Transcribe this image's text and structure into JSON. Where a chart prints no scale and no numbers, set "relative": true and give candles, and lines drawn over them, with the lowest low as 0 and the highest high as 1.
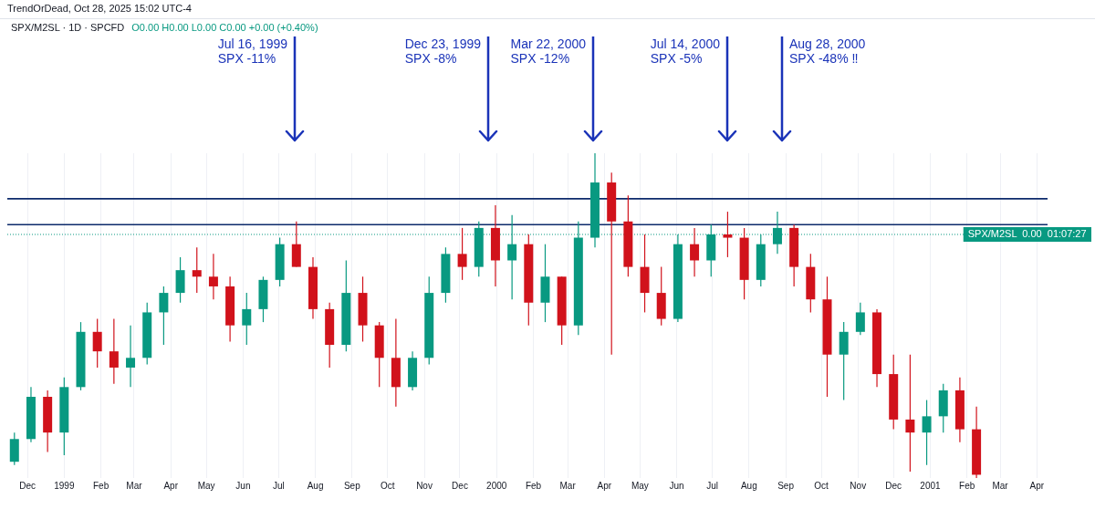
{
  "chart_data": {
    "type": "candlestick",
    "title": "SPX/M2SL · 1D · SPCFD",
    "subtitle": "O0.00 H0.00 L0.00 C0.00 +0.00 (+0.40%)",
    "relative": true,
    "grid": "x",
    "legend": false,
    "annotations": [
      "TrendOrDead, Oct 28, 2025 15:02 UTC-4",
      "Jul 16, 1999\nSPX -11%",
      "Dec 23, 1999\nSPX -8%",
      "Mar 22, 2000\nSPX -12%",
      "Jul 14, 2000\nSPX -5%",
      "Aug 28, 2000\nSPX -48% ‼"
    ],
    "ref_lines": [
      {
        "axis": "y",
        "value": 0.86,
        "label": null,
        "color": "#0d2a6b",
        "line_style": "solid"
      },
      {
        "axis": "y",
        "value": 0.78,
        "label": null,
        "color": "#0d2a6b",
        "line_style": "solid"
      },
      {
        "axis": "y",
        "value": 0.75,
        "label": "SPX/M2SL  0.00  01:07:27",
        "color": "#089981",
        "line_style": "dotted"
      }
    ],
    "xlim": [
      "1998-11-14",
      "2001-04-10"
    ],
    "xticks": [
      {
        "value": "1998-12-01",
        "label": "Dec"
      },
      {
        "value": "1999-01-01",
        "label": "1999"
      },
      {
        "value": "1999-02-01",
        "label": "Feb"
      },
      {
        "value": "1999-03-01",
        "label": "Mar"
      },
      {
        "value": "1999-04-01",
        "label": "Apr"
      },
      {
        "value": "1999-05-01",
        "label": "May"
      },
      {
        "value": "1999-06-01",
        "label": "Jun"
      },
      {
        "value": "1999-07-01",
        "label": "Jul"
      },
      {
        "value": "1999-08-01",
        "label": "Aug"
      },
      {
        "value": "1999-09-01",
        "label": "Sep"
      },
      {
        "value": "1999-10-01",
        "label": "Oct"
      },
      {
        "value": "1999-11-01",
        "label": "Nov"
      },
      {
        "value": "1999-12-01",
        "label": "Dec"
      },
      {
        "value": "2000-01-01",
        "label": "2000"
      },
      {
        "value": "2000-02-01",
        "label": "Feb"
      },
      {
        "value": "2000-03-01",
        "label": "Mar"
      },
      {
        "value": "2000-04-01",
        "label": "Apr"
      },
      {
        "value": "2000-05-01",
        "label": "May"
      },
      {
        "value": "2000-06-01",
        "label": "Jun"
      },
      {
        "value": "2000-07-01",
        "label": "Jul"
      },
      {
        "value": "2000-08-01",
        "label": "Aug"
      },
      {
        "value": "2000-09-01",
        "label": "Sep"
      },
      {
        "value": "2000-10-01",
        "label": "Oct"
      },
      {
        "value": "2000-11-01",
        "label": "Nov"
      },
      {
        "value": "2000-12-01",
        "label": "Dec"
      },
      {
        "value": "2001-01-01",
        "label": "2001"
      },
      {
        "value": "2001-02-01",
        "label": "Feb"
      },
      {
        "value": "2001-03-01",
        "label": "Mar"
      },
      {
        "value": "2001-04-01",
        "label": "Apr"
      }
    ],
    "x": [
      "1998-11-20",
      "1998-12-04",
      "1998-12-18",
      "1999-01-01",
      "1999-01-15",
      "1999-01-29",
      "1999-02-12",
      "1999-02-26",
      "1999-03-12",
      "1999-03-26",
      "1999-04-09",
      "1999-04-23",
      "1999-05-07",
      "1999-05-21",
      "1999-06-04",
      "1999-06-18",
      "1999-07-02",
      "1999-07-16",
      "1999-07-30",
      "1999-08-13",
      "1999-08-27",
      "1999-09-10",
      "1999-09-24",
      "1999-10-08",
      "1999-10-22",
      "1999-11-05",
      "1999-11-19",
      "1999-12-03",
      "1999-12-17",
      "1999-12-31",
      "2000-01-14",
      "2000-01-28",
      "2000-02-11",
      "2000-02-25",
      "2000-03-10",
      "2000-03-24",
      "2000-04-07",
      "2000-04-21",
      "2000-05-05",
      "2000-05-19",
      "2000-06-02",
      "2000-06-16",
      "2000-06-30",
      "2000-07-14",
      "2000-07-28",
      "2000-08-11",
      "2000-08-25",
      "2000-09-08",
      "2000-09-22",
      "2000-10-06",
      "2000-10-20",
      "2000-11-03",
      "2000-11-17",
      "2000-12-01",
      "2000-12-15",
      "2000-12-29",
      "2001-01-12",
      "2001-01-26",
      "2001-02-09"
    ],
    "ohlc": [
      [
        0.05,
        0.14,
        0.04,
        0.12
      ],
      [
        0.12,
        0.28,
        0.11,
        0.25
      ],
      [
        0.25,
        0.27,
        0.08,
        0.14
      ],
      [
        0.14,
        0.31,
        0.07,
        0.28
      ],
      [
        0.28,
        0.48,
        0.27,
        0.45
      ],
      [
        0.45,
        0.49,
        0.34,
        0.39
      ],
      [
        0.39,
        0.49,
        0.29,
        0.34
      ],
      [
        0.34,
        0.47,
        0.28,
        0.37
      ],
      [
        0.37,
        0.54,
        0.35,
        0.51
      ],
      [
        0.51,
        0.59,
        0.41,
        0.57
      ],
      [
        0.57,
        0.68,
        0.54,
        0.64
      ],
      [
        0.64,
        0.71,
        0.57,
        0.62
      ],
      [
        0.62,
        0.69,
        0.55,
        0.59
      ],
      [
        0.59,
        0.62,
        0.42,
        0.47
      ],
      [
        0.47,
        0.57,
        0.41,
        0.52
      ],
      [
        0.52,
        0.62,
        0.48,
        0.61
      ],
      [
        0.61,
        0.74,
        0.59,
        0.72
      ],
      [
        0.72,
        0.79,
        0.65,
        0.65
      ],
      [
        0.65,
        0.68,
        0.49,
        0.52
      ],
      [
        0.52,
        0.54,
        0.34,
        0.41
      ],
      [
        0.41,
        0.67,
        0.39,
        0.57
      ],
      [
        0.57,
        0.62,
        0.42,
        0.47
      ],
      [
        0.47,
        0.48,
        0.28,
        0.37
      ],
      [
        0.37,
        0.49,
        0.22,
        0.28
      ],
      [
        0.28,
        0.39,
        0.27,
        0.37
      ],
      [
        0.37,
        0.62,
        0.35,
        0.57
      ],
      [
        0.57,
        0.71,
        0.54,
        0.69
      ],
      [
        0.69,
        0.77,
        0.61,
        0.65
      ],
      [
        0.65,
        0.79,
        0.62,
        0.77
      ],
      [
        0.77,
        0.84,
        0.59,
        0.67
      ],
      [
        0.67,
        0.81,
        0.55,
        0.72
      ],
      [
        0.72,
        0.75,
        0.47,
        0.54
      ],
      [
        0.54,
        0.72,
        0.48,
        0.62
      ],
      [
        0.62,
        0.62,
        0.41,
        0.47
      ],
      [
        0.47,
        0.79,
        0.44,
        0.74
      ],
      [
        0.74,
        1,
        0.71,
        0.91
      ],
      [
        0.91,
        0.94,
        0.38,
        0.79
      ],
      [
        0.79,
        0.87,
        0.62,
        0.65
      ],
      [
        0.65,
        0.75,
        0.51,
        0.57
      ],
      [
        0.57,
        0.65,
        0.47,
        0.49
      ],
      [
        0.49,
        0.75,
        0.48,
        0.72
      ],
      [
        0.72,
        0.77,
        0.62,
        0.67
      ],
      [
        0.67,
        0.78,
        0.62,
        0.75
      ],
      [
        0.75,
        0.82,
        0.68,
        0.74
      ],
      [
        0.74,
        0.77,
        0.55,
        0.61
      ],
      [
        0.61,
        0.75,
        0.59,
        0.72
      ],
      [
        0.72,
        0.82,
        0.69,
        0.77
      ],
      [
        0.77,
        0.78,
        0.59,
        0.65
      ],
      [
        0.65,
        0.69,
        0.51,
        0.55
      ],
      [
        0.55,
        0.62,
        0.25,
        0.38
      ],
      [
        0.38,
        0.48,
        0.24,
        0.45
      ],
      [
        0.45,
        0.54,
        0.44,
        0.51
      ],
      [
        0.51,
        0.52,
        0.28,
        0.32
      ],
      [
        0.32,
        0.38,
        0.15,
        0.18
      ],
      [
        0.18,
        0.38,
        0.02,
        0.14
      ],
      [
        0.14,
        0.24,
        0.04,
        0.19
      ],
      [
        0.19,
        0.29,
        0.14,
        0.27
      ],
      [
        0.27,
        0.31,
        0.11,
        0.15
      ],
      [
        0.15,
        0.22,
        0,
        0.01
      ]
    ],
    "colors": [
      "#089981",
      "#089981",
      "#d1121b",
      "#089981",
      "#089981",
      "#d1121b",
      "#d1121b",
      "#089981",
      "#089981",
      "#089981",
      "#089981",
      "#d1121b",
      "#d1121b",
      "#d1121b",
      "#089981",
      "#089981",
      "#089981",
      "#d1121b",
      "#d1121b",
      "#d1121b",
      "#089981",
      "#d1121b",
      "#d1121b",
      "#d1121b",
      "#089981",
      "#089981",
      "#089981",
      "#d1121b",
      "#089981",
      "#d1121b",
      "#089981",
      "#d1121b",
      "#089981",
      "#d1121b",
      "#089981",
      "#089981",
      "#d1121b",
      "#d1121b",
      "#d1121b",
      "#d1121b",
      "#089981",
      "#d1121b",
      "#089981",
      "#d1121b",
      "#d1121b",
      "#089981",
      "#089981",
      "#d1121b",
      "#d1121b",
      "#d1121b",
      "#089981",
      "#089981",
      "#d1121b",
      "#d1121b",
      "#d1121b",
      "#089981",
      "#089981",
      "#d1121b",
      "#d1121b"
    ]
  }
}
